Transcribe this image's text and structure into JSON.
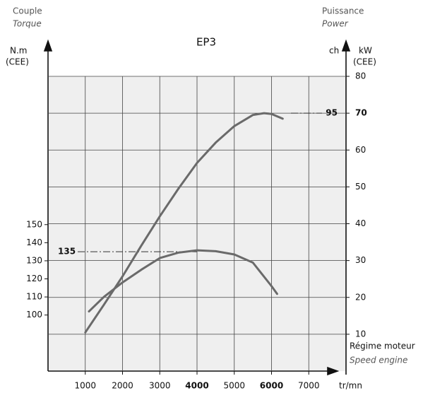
{
  "chart_data": {
    "type": "line",
    "title": "EP3",
    "left_title": {
      "fr": "Couple",
      "en": "Torque"
    },
    "right_title": {
      "fr": "Puissance",
      "en": "Power"
    },
    "x_title": {
      "fr": "Régime moteur",
      "en": "Speed engine"
    },
    "ylabel": [
      "N.m",
      "(CEE)"
    ],
    "y2label": [
      "kW",
      "(CEE)"
    ],
    "y2label_alt": "ch",
    "xlabel": "tr/mn",
    "xlim": [
      0,
      8000
    ],
    "xticks": [
      1000,
      2000,
      3000,
      4000,
      5000,
      6000,
      7000
    ],
    "bold_xticks": [
      4000,
      6000
    ],
    "ylim": [
      69,
      232
    ],
    "yticks": [
      100,
      110,
      120,
      130,
      140,
      150
    ],
    "y2lim": [
      0,
      80
    ],
    "y2ticks": [
      10,
      20,
      30,
      40,
      50,
      60,
      70,
      80
    ],
    "bold_y2ticks": [
      70
    ],
    "grid": true,
    "series": [
      {
        "axis": "y",
        "color": "#6a6a6a",
        "x": [
          1100,
          1500,
          2000,
          2500,
          3000,
          3500,
          4000,
          4500,
          5000,
          5500,
          6000,
          6150
        ],
        "values": [
          102,
          110,
          118,
          125,
          131.5,
          134.5,
          135.8,
          135.3,
          133.5,
          129,
          116,
          111.7
        ]
      },
      {
        "axis": "y2",
        "color": "#6a6a6a",
        "x": [
          1000,
          1500,
          2000,
          2500,
          3000,
          3500,
          4000,
          4500,
          5000,
          5500,
          5800,
          6000,
          6300
        ],
        "values": [
          10.5,
          18,
          25.7,
          34,
          42,
          49.5,
          56.5,
          62,
          66.5,
          69.5,
          70,
          69.8,
          68.5
        ]
      }
    ],
    "annotations": [
      {
        "label": "135",
        "value": 135,
        "axis": "y"
      },
      {
        "label": "95",
        "value": 70,
        "axis": "y2"
      }
    ]
  }
}
